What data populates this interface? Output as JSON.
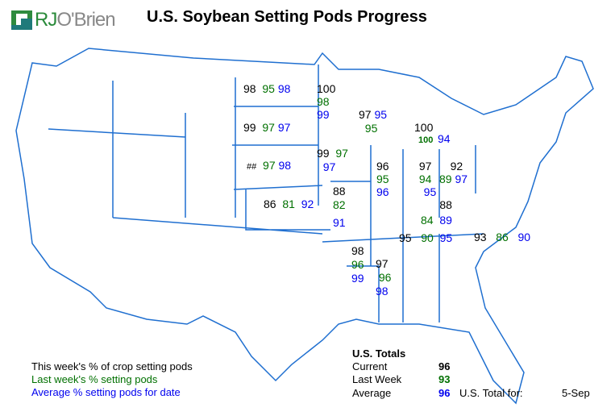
{
  "title": "U.S. Soybean Setting Pods Progress",
  "logo_text": "RJO'Brien",
  "colors": {
    "current": "#000000",
    "last_week": "#007000",
    "average": "#0000ee",
    "borders": "#1f6fd0"
  },
  "states": {
    "ND": {
      "current": "98",
      "last_week": "95",
      "average": "98"
    },
    "MN": {
      "current": "100",
      "last_week": "98",
      "average": "99"
    },
    "SD": {
      "current": "99",
      "last_week": "97",
      "average": "97"
    },
    "WI": {
      "current": "97",
      "last_week": "95",
      "average": "95"
    },
    "MI": {
      "current": "100",
      "last_week": "100",
      "average": "94"
    },
    "NE": {
      "current": "##",
      "last_week": "97",
      "average": "98"
    },
    "IA": {
      "current": "99",
      "last_week": "97",
      "average": "97"
    },
    "IL": {
      "current": "96",
      "last_week": "95",
      "average": "96"
    },
    "IN": {
      "current": "97",
      "last_week": "94",
      "average": "95"
    },
    "OH": {
      "current": "92",
      "last_week": "89",
      "average": "97"
    },
    "KS": {
      "current": "86",
      "last_week": "81",
      "average": "92"
    },
    "MO": {
      "current": "88",
      "last_week": "82",
      "average": "91"
    },
    "KY": {
      "current": "88",
      "last_week": "84",
      "average": "89"
    },
    "TN": {
      "current": "95",
      "last_week": "90",
      "average": "95"
    },
    "NC": {
      "current": "93",
      "last_week": "86",
      "average": "90"
    },
    "AR": {
      "current": "98",
      "last_week": "96",
      "average": "99"
    },
    "MS": {
      "current": "97",
      "last_week": "96",
      "average": "98"
    }
  },
  "legend": {
    "current": "This week's % of crop setting pods",
    "last_week": "Last week's % setting pods",
    "average": "Average % setting pods for date"
  },
  "totals": {
    "heading": "U.S. Totals",
    "current_label": "Current",
    "current": "96",
    "last_week_label": "Last Week",
    "last_week": "93",
    "average_label": "Average",
    "average": "96",
    "date_label": "U.S. Total for:",
    "date": "5-Sep"
  }
}
